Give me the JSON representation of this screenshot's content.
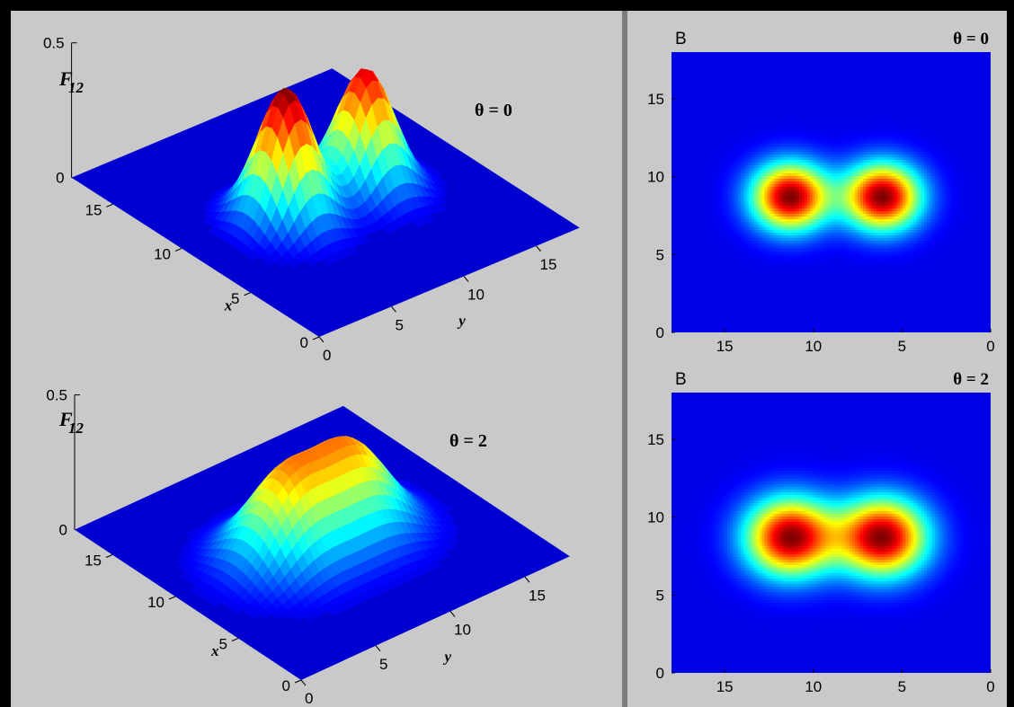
{
  "chart_data": [
    {
      "type": "surface",
      "zlabel": "F",
      "zlabel_sub": "12",
      "xlabel": "x",
      "ylabel": "y",
      "annotation": "θ = 0",
      "ztick_labels": [
        "0",
        "0.5"
      ],
      "xtick_labels": [
        "0",
        "5",
        "10",
        "15"
      ],
      "ytick_labels": [
        "0",
        "5",
        "10",
        "15"
      ],
      "xlim": [
        0,
        18
      ],
      "ylim": [
        0,
        18
      ],
      "zlim": [
        0,
        0.5
      ],
      "peaks": [
        {
          "x": 8.7,
          "y": 6,
          "height": 0.5
        },
        {
          "x": 8.7,
          "y": 11.5,
          "height": 0.45
        }
      ],
      "peak_width": 1.5
    },
    {
      "type": "surface",
      "zlabel": "F",
      "zlabel_sub": "12",
      "xlabel": "x",
      "ylabel": "y",
      "annotation": "θ = 2",
      "ztick_labels": [
        "0",
        "0.5"
      ],
      "xtick_labels": [
        "0",
        "5",
        "10",
        "15"
      ],
      "ytick_labels": [
        "0",
        "5",
        "10",
        "15"
      ],
      "xlim": [
        0,
        18
      ],
      "ylim": [
        0,
        18
      ],
      "zlim": [
        0,
        0.5
      ],
      "peaks": [
        {
          "x": 8.7,
          "y": 6.3,
          "height": 0.32
        },
        {
          "x": 8.7,
          "y": 10.7,
          "height": 0.32
        }
      ],
      "peak_width": 2.1
    },
    {
      "type": "heatmap",
      "title_left": "B",
      "annotation": "θ = 0",
      "xtick_labels": [
        "15",
        "10",
        "5",
        "0"
      ],
      "ytick_labels": [
        "0",
        "5",
        "10",
        "15"
      ],
      "xlim": [
        18,
        0
      ],
      "ylim": [
        0,
        18
      ],
      "centers": [
        {
          "x": 11.3,
          "y": 8.7
        },
        {
          "x": 6.1,
          "y": 8.7
        }
      ],
      "blob_width": 1.5
    },
    {
      "type": "heatmap",
      "title_left": "B",
      "annotation": "θ = 2",
      "xtick_labels": [
        "15",
        "10",
        "5",
        "0"
      ],
      "ytick_labels": [
        "0",
        "5",
        "10",
        "15"
      ],
      "xlim": [
        18,
        0
      ],
      "ylim": [
        0,
        18
      ],
      "centers": [
        {
          "x": 11.3,
          "y": 8.7
        },
        {
          "x": 6.1,
          "y": 8.7
        }
      ],
      "blob_width": 1.75
    }
  ],
  "colors": {
    "figure_background": "#c9c9c9",
    "border": "#000000",
    "divider": "#7d7d7d",
    "colormap": "jet"
  }
}
